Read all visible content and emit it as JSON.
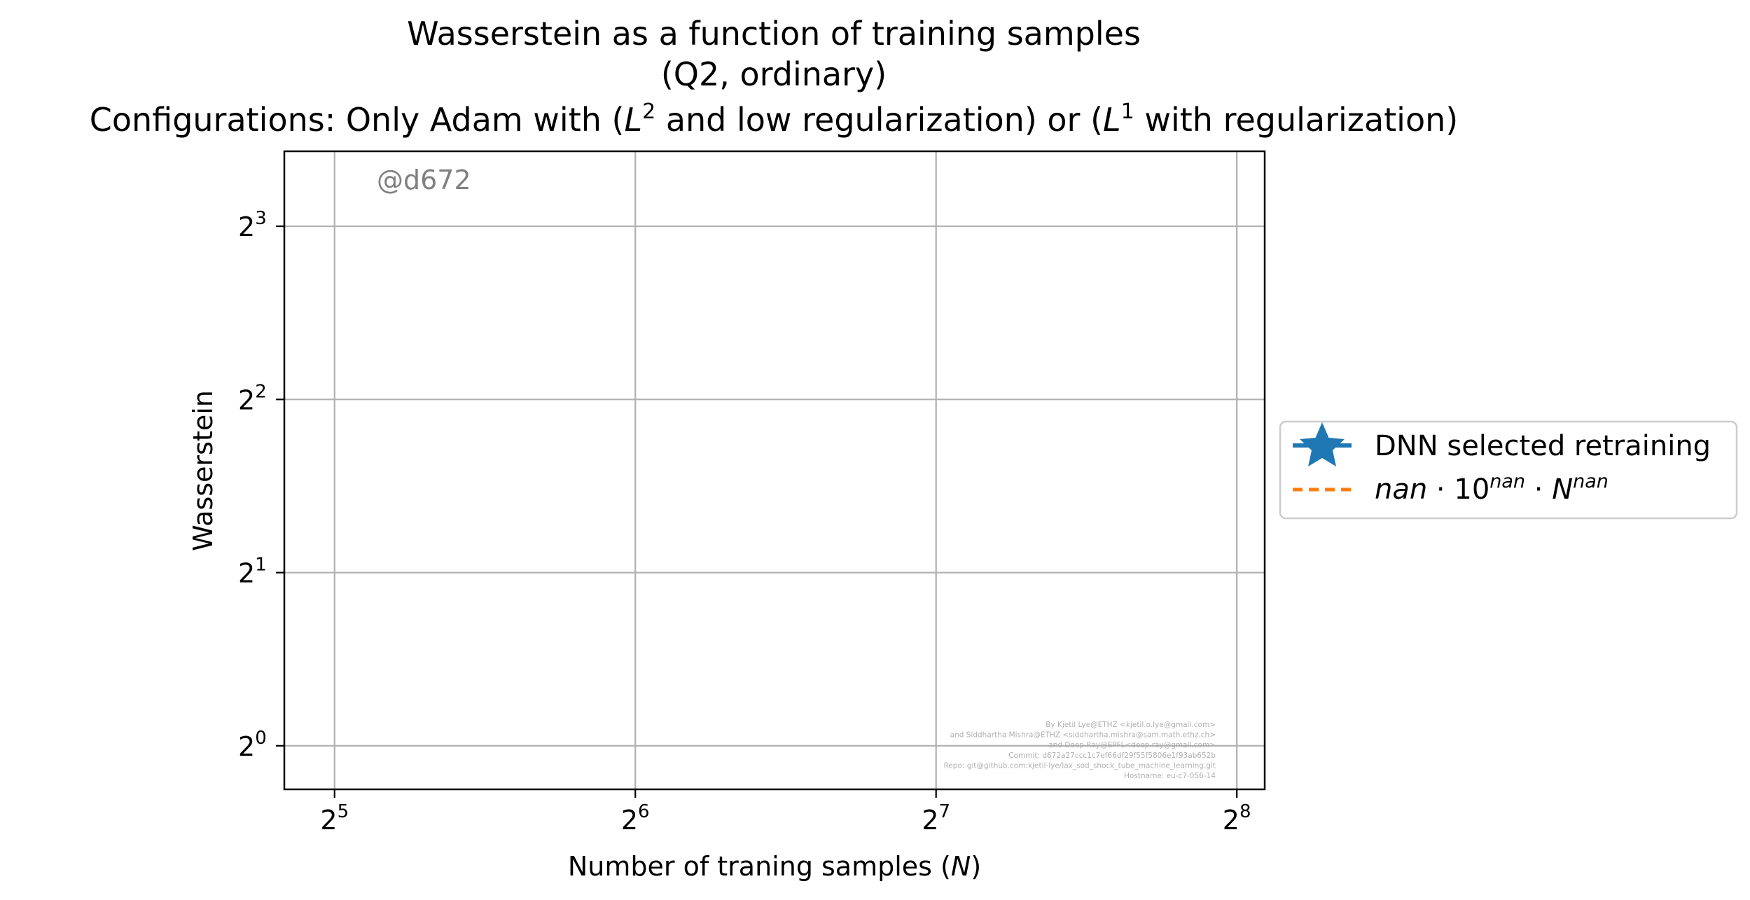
{
  "chart_data": {
    "type": "line",
    "title_lines": [
      "Wasserstein as a function of training samples",
      "(Q2, ordinary)"
    ],
    "title_config": {
      "prefix": "Configurations: Only Adam with (",
      "l2_base": "L",
      "l2_exp": "2",
      "mid": " and low regularization) or (",
      "l1_base": "L",
      "l1_exp": "1",
      "suffix": " with regularization)"
    },
    "xlabel": {
      "text": "Number of traning samples (",
      "var": "N",
      "close": ")"
    },
    "ylabel": "Wasserstein",
    "x_scale": "log2",
    "y_scale": "log2",
    "xlim": [
      28.5,
      273
    ],
    "ylim": [
      0.84,
      10.8
    ],
    "x_ticks": [
      {
        "base": "2",
        "exp": "5",
        "value": 32
      },
      {
        "base": "2",
        "exp": "6",
        "value": 64
      },
      {
        "base": "2",
        "exp": "7",
        "value": 128
      },
      {
        "base": "2",
        "exp": "8",
        "value": 256
      }
    ],
    "y_ticks": [
      {
        "base": "2",
        "exp": "0",
        "value": 1
      },
      {
        "base": "2",
        "exp": "1",
        "value": 2
      },
      {
        "base": "2",
        "exp": "2",
        "value": 4
      },
      {
        "base": "2",
        "exp": "3",
        "value": 8
      }
    ],
    "grid": true,
    "legend_placement": "outside right",
    "series": [
      {
        "name": "DNN selected retraining",
        "color": "#1f77b4",
        "marker": "star",
        "line_style": "solid",
        "x": [],
        "y": []
      },
      {
        "name": "nan·10^nan·N^nan",
        "color": "#ff7f0e",
        "line_style": "dashed",
        "x": [],
        "y": []
      }
    ],
    "legend": {
      "entry1": "DNN selected retraining",
      "entry2": {
        "a": "nan",
        "dot": " · 10",
        "e1": "nan",
        "dot2": " · ",
        "n": "N",
        "e2": "nan"
      }
    },
    "watermark": "@d672",
    "credits": [
      "By Kjetil Lye@ETHZ <kjetil.o.lye@gmail.com>",
      "and Siddhartha Mishra@ETHZ <siddhartha.mishra@sam.math.ethz.ch>",
      "and Deep Ray@EPFL<deep.ray@gmail.com>",
      "Commit: d672a27ccc1c7ef66df29f55f5806e1f93ab652b",
      "Repo: git@github.com:kjetil-lye/lax_sod_shock_tube_machine_learning.git",
      "Hostname: eu-c7-056-14"
    ]
  }
}
